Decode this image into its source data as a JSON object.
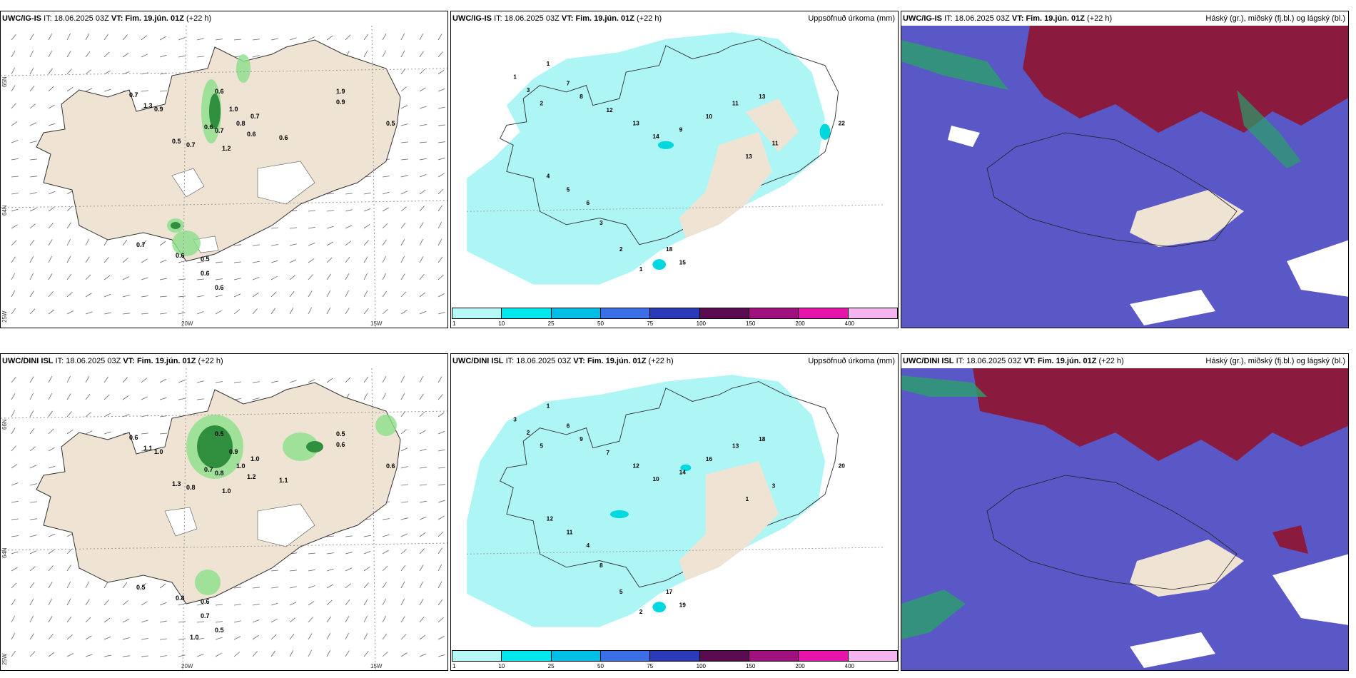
{
  "rows": [
    {
      "model": "UWC/IG-IS",
      "it_label": "IT:",
      "it_value": "18.06.2025 03Z",
      "vt_label": "VT:",
      "vt_value": "Fim. 19.jún. 01Z",
      "lead": "(+22 h)",
      "precip_labels": [
        "0.7",
        "1.3",
        "0.9",
        "0.6",
        "1.0",
        "0.8",
        "0.7",
        "0.6",
        "0.7",
        "0.6",
        "1.2",
        "0.7",
        "0.5",
        "0.6",
        "1.9",
        "0.9",
        "0.5",
        "0.7",
        "0.6",
        "0.5",
        "0.6",
        "0.6"
      ],
      "accum_labels": [
        "1",
        "3",
        "2",
        "1",
        "7",
        "8",
        "12",
        "13",
        "14",
        "9",
        "10",
        "11",
        "13",
        "18",
        "15",
        "22",
        "4",
        "5",
        "6",
        "3",
        "2",
        "1",
        "13",
        "11"
      ],
      "lat_labels": [
        "65N",
        "64N",
        "25W"
      ],
      "lon_labels": [
        "20W",
        "15W"
      ]
    },
    {
      "model": "UWC/DINI ISL",
      "it_label": "IT:",
      "it_value": "18.06.2025 03Z",
      "vt_label": "VT:",
      "vt_value": "Fim. 19.jún. 01Z",
      "lead": "(+22 h)",
      "precip_labels": [
        "0.6",
        "1.1",
        "1.0",
        "0.5",
        "0.9",
        "1.0",
        "0.8",
        "0.7",
        "1.0",
        "1.2",
        "1.0",
        "0.8",
        "1.3",
        "1.1",
        "0.5",
        "0.6",
        "0.6",
        "0.5",
        "0.8",
        "0.6",
        "0.7",
        "0.5",
        "1.0"
      ],
      "accum_labels": [
        "3",
        "2",
        "5",
        "1",
        "6",
        "9",
        "7",
        "12",
        "10",
        "14",
        "16",
        "13",
        "18",
        "17",
        "19",
        "20",
        "12",
        "11",
        "4",
        "8",
        "5",
        "2",
        "1",
        "3"
      ],
      "lat_labels": [
        "66N",
        "64N",
        "25W"
      ],
      "lon_labels": [
        "20W",
        "15W"
      ]
    }
  ],
  "accum_title": "Uppsöfnuð úrkoma (mm)",
  "cloud_title": "Háský (gr.), miðský (fj.bl.) og lágský (bl.)",
  "legend": {
    "ticks": [
      "1",
      "10",
      "25",
      "50",
      "75",
      "100",
      "150",
      "200",
      "400"
    ],
    "colors": [
      "#b6f8f8",
      "#00e8ee",
      "#00bee6",
      "#3c6ee6",
      "#2a3ab8",
      "#5a0a50",
      "#a0107e",
      "#e614aa",
      "#f4b4ee"
    ]
  },
  "colors": {
    "land": "#efe3d3",
    "accum_fill": "#aef6f6",
    "cloud_base": "#5a58c6",
    "high_cloud": "#8a1a3e",
    "green_precip": "#2f8f3f"
  }
}
